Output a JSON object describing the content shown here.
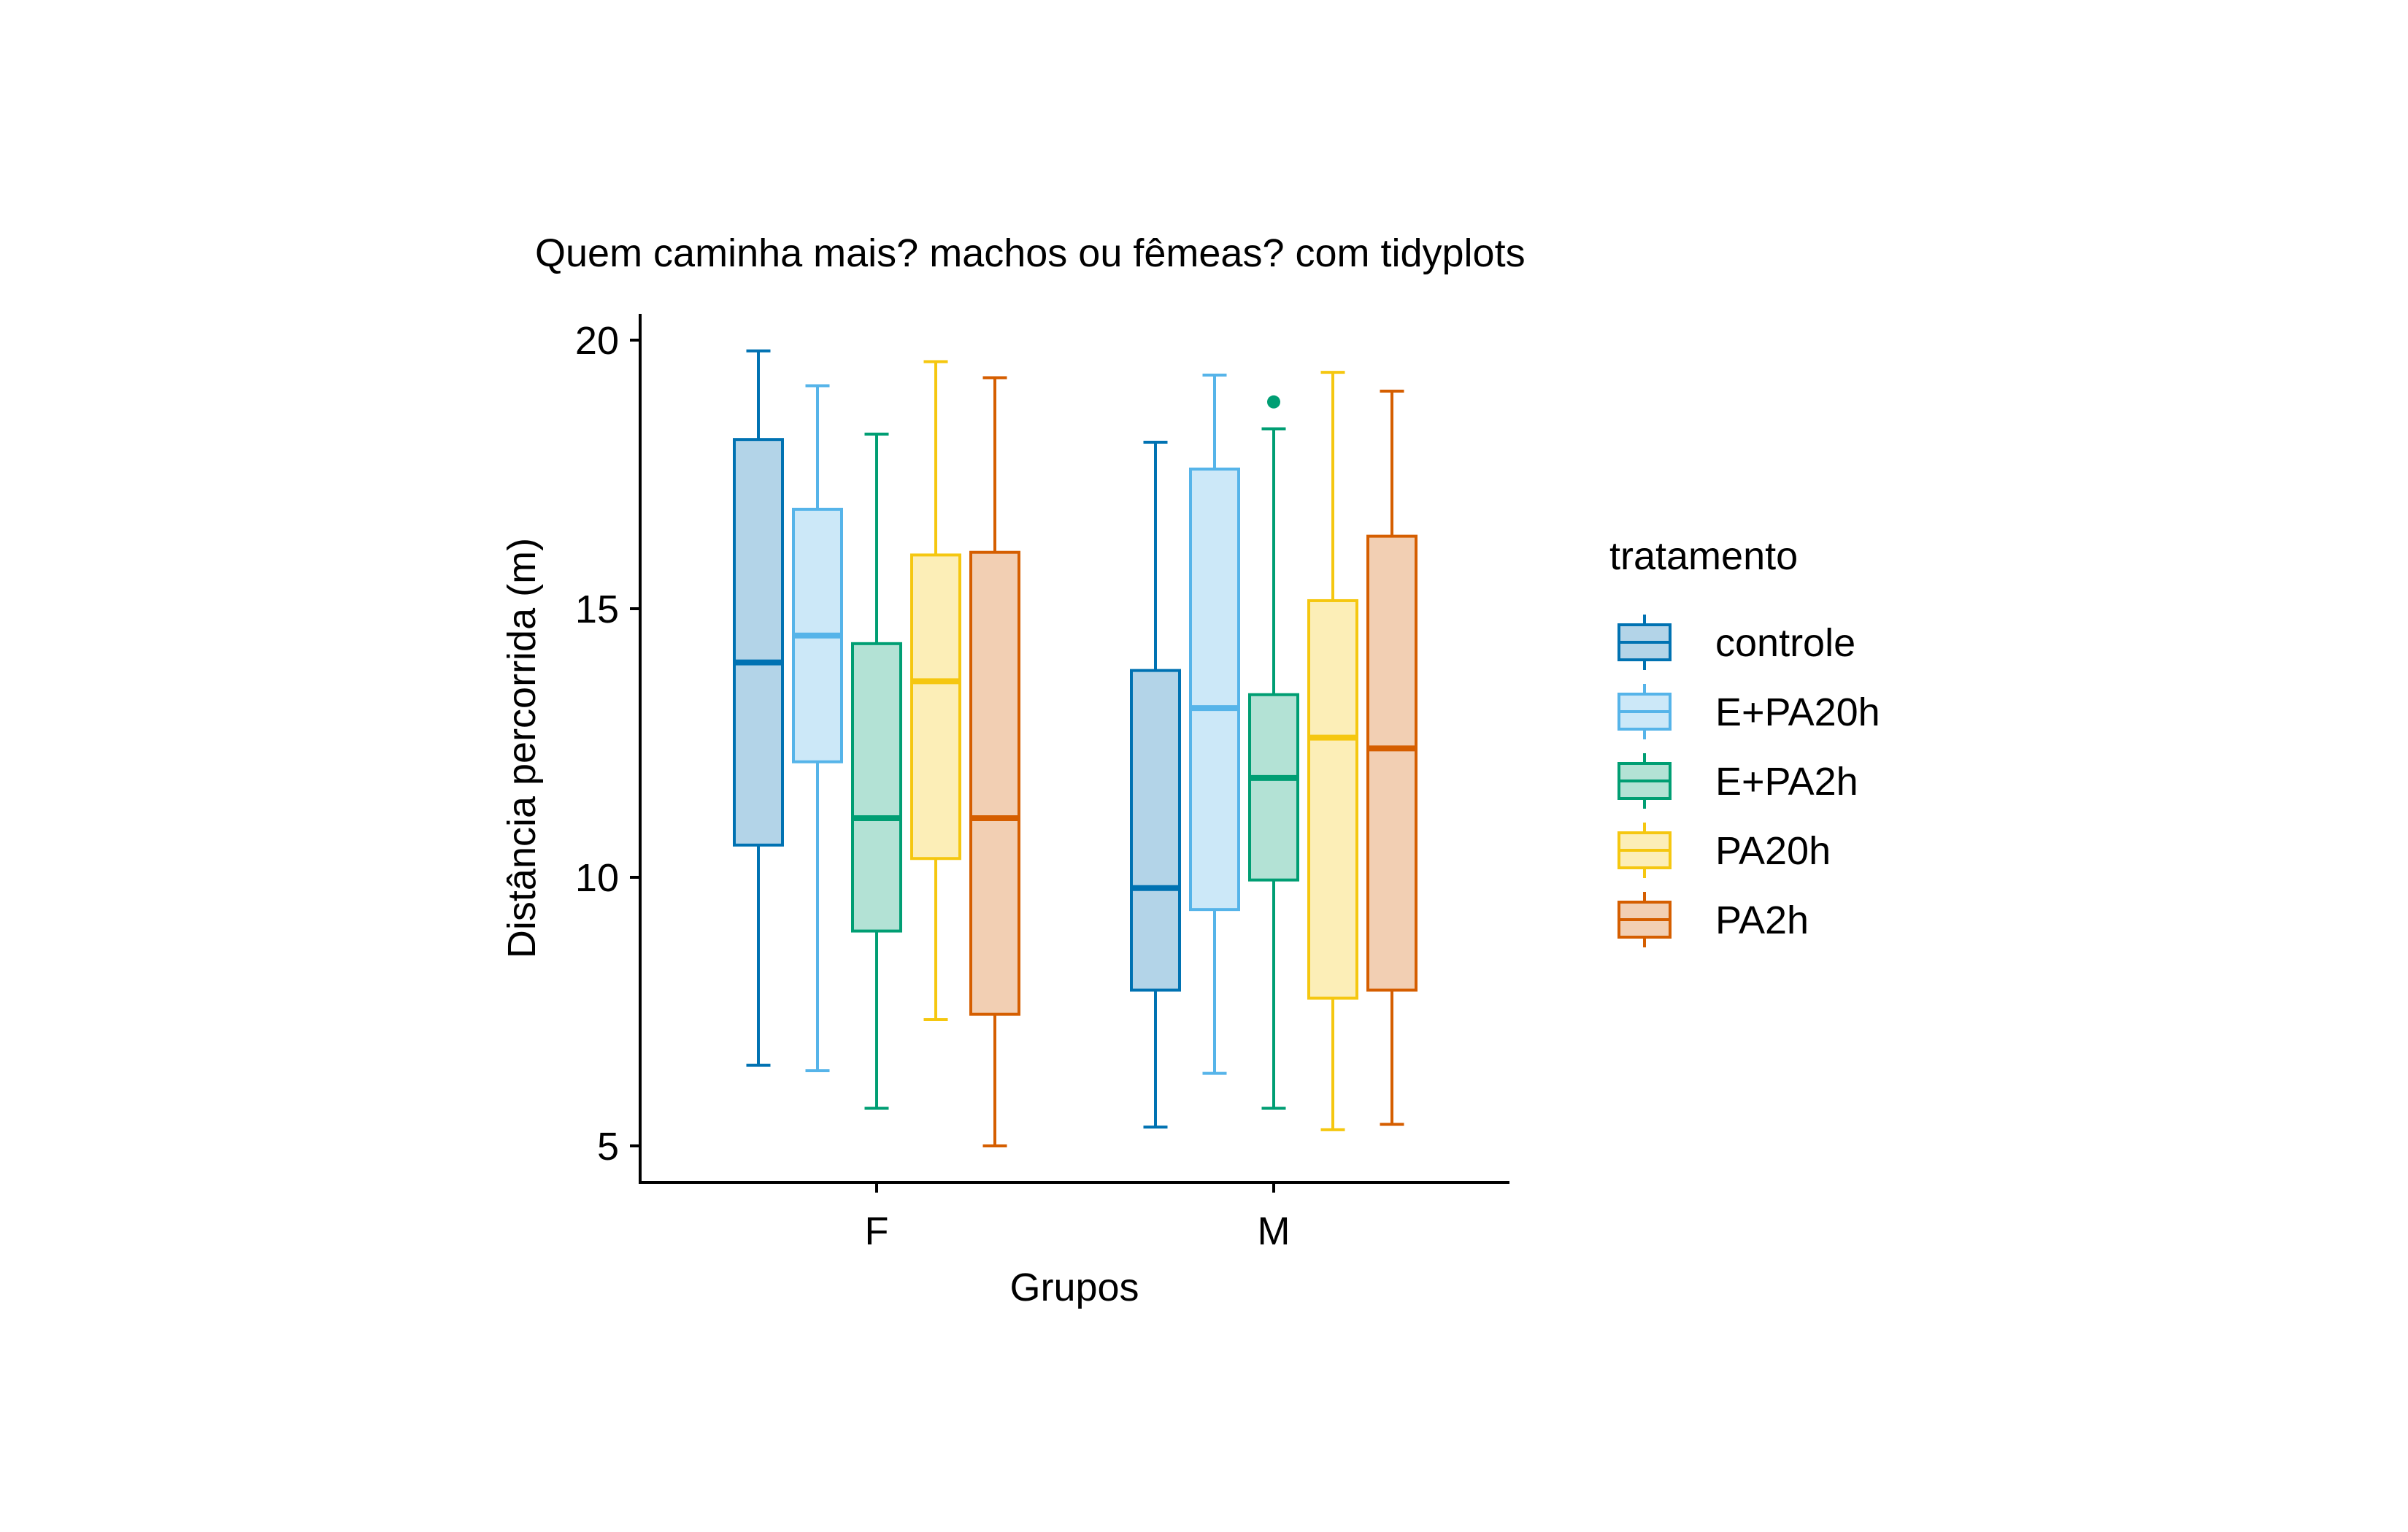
{
  "chart_data": {
    "type": "boxplot",
    "title": "Quem caminha mais? machos ou fêmeas? com tidyplots",
    "xlabel": "Grupos",
    "ylabel": "Distância percorrida (m)",
    "ylim": [
      4.3,
      20.5
    ],
    "yticks": [
      5,
      10,
      15,
      20
    ],
    "categories": [
      "F",
      "M"
    ],
    "legend": {
      "title": "tratamento",
      "position": "right"
    },
    "grid": false,
    "series": [
      {
        "name": "controle",
        "color": "#0072B2",
        "fill": "#B3D4E8",
        "boxes": [
          {
            "group": "F",
            "min": 6.5,
            "q1": 10.6,
            "median": 14.0,
            "q3": 18.15,
            "max": 19.8,
            "outliers": []
          },
          {
            "group": "M",
            "min": 5.35,
            "q1": 7.9,
            "median": 9.8,
            "q3": 13.85,
            "max": 18.1,
            "outliers": []
          }
        ]
      },
      {
        "name": "E+PA20h",
        "color": "#56B4E9",
        "fill": "#CCE8F8",
        "boxes": [
          {
            "group": "F",
            "min": 6.4,
            "q1": 12.15,
            "median": 14.5,
            "q3": 16.85,
            "max": 19.15,
            "outliers": []
          },
          {
            "group": "M",
            "min": 6.35,
            "q1": 9.4,
            "median": 13.15,
            "q3": 17.6,
            "max": 19.35,
            "outliers": []
          }
        ]
      },
      {
        "name": "E+PA2h",
        "color": "#009E73",
        "fill": "#B3E2D5",
        "boxes": [
          {
            "group": "F",
            "min": 5.7,
            "q1": 9.0,
            "median": 11.1,
            "q3": 14.35,
            "max": 18.25,
            "outliers": []
          },
          {
            "group": "M",
            "min": 5.7,
            "q1": 9.95,
            "median": 11.85,
            "q3": 13.4,
            "max": 18.35,
            "outliers": [
              18.85
            ]
          }
        ]
      },
      {
        "name": "PA20h",
        "color": "#F5C710",
        "fill": "#FCEEB7",
        "boxes": [
          {
            "group": "F",
            "min": 7.35,
            "q1": 10.35,
            "median": 13.65,
            "q3": 16.0,
            "max": 19.6,
            "outliers": []
          },
          {
            "group": "M",
            "min": 5.3,
            "q1": 7.75,
            "median": 12.6,
            "q3": 15.15,
            "max": 19.4,
            "outliers": []
          }
        ]
      },
      {
        "name": "PA2h",
        "color": "#D55E00",
        "fill": "#F2CFB3",
        "boxes": [
          {
            "group": "F",
            "min": 5.0,
            "q1": 7.45,
            "median": 11.1,
            "q3": 16.05,
            "max": 19.3,
            "outliers": []
          },
          {
            "group": "M",
            "min": 5.4,
            "q1": 7.9,
            "median": 12.4,
            "q3": 16.35,
            "max": 19.05,
            "outliers": []
          }
        ]
      }
    ]
  }
}
